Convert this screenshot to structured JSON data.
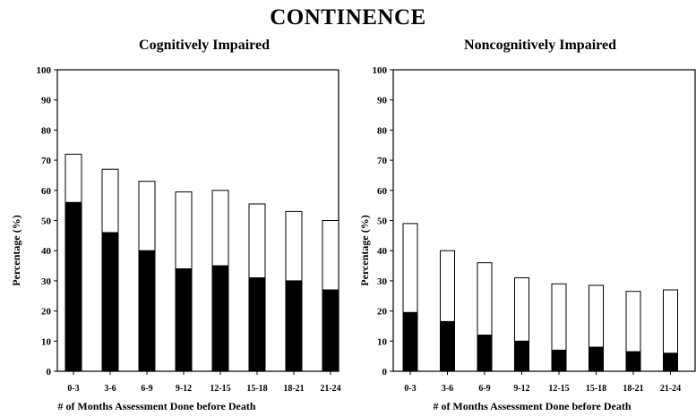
{
  "title": "CONTINENCE",
  "chart_data": [
    {
      "type": "bar",
      "stacked": true,
      "title": "Cognitively Impaired",
      "xlabel": "# of Months Assessment Done before Death",
      "ylabel": "Percentage (%)",
      "ylim": [
        0,
        100
      ],
      "yticks": [
        "0",
        "10",
        "20",
        "30",
        "40",
        "50",
        "60",
        "70",
        "80",
        "90",
        "100"
      ],
      "categories": [
        "0-3",
        "3-6",
        "6-9",
        "9-12",
        "12-15",
        "15-18",
        "18-21",
        "21-24"
      ],
      "series": [
        {
          "color": "#000000",
          "values": [
            56,
            46,
            40,
            34,
            35,
            31,
            30,
            27
          ]
        },
        {
          "color": "#ffffff",
          "values": [
            16,
            21,
            23,
            25.5,
            25,
            24.5,
            23,
            23
          ]
        }
      ],
      "totals": [
        72,
        67,
        63,
        59.5,
        60,
        55.5,
        53,
        50
      ],
      "grid": false,
      "legend": "none"
    },
    {
      "type": "bar",
      "stacked": true,
      "title": "Noncognitively Impaired",
      "xlabel": "# of Months Assessment Done before Death",
      "ylabel": "Percentage (%)",
      "ylim": [
        0,
        100
      ],
      "yticks": [
        "0",
        "10",
        "20",
        "30",
        "40",
        "50",
        "60",
        "70",
        "80",
        "90",
        "100"
      ],
      "categories": [
        "0-3",
        "3-6",
        "6-9",
        "9-12",
        "12-15",
        "15-18",
        "18-21",
        "21-24"
      ],
      "series": [
        {
          "color": "#000000",
          "values": [
            19.5,
            16.5,
            12,
            10,
            7,
            8,
            6.5,
            6
          ]
        },
        {
          "color": "#ffffff",
          "values": [
            29.5,
            23.5,
            24,
            21,
            22,
            20.5,
            20,
            21
          ]
        }
      ],
      "totals": [
        49,
        40,
        36,
        31,
        29,
        28.5,
        26.5,
        27
      ],
      "grid": false,
      "legend": "none"
    }
  ]
}
